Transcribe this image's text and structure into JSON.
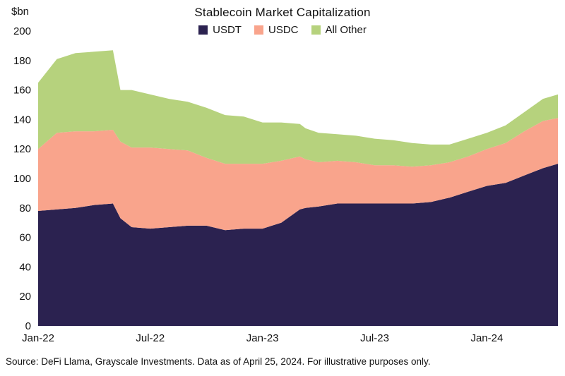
{
  "header": {
    "unit_label": "$bn"
  },
  "footer": {
    "source": "Source: DeFi Llama, Grayscale Investments. Data as of April 25, 2024. For illustrative purposes only."
  },
  "chart_data": {
    "type": "area",
    "stacked": true,
    "title": "Stablecoin Market Capitalization",
    "ylabel": "$bn",
    "xlabel": "",
    "ylim": [
      0,
      200
    ],
    "ytick_step": 20,
    "grid": false,
    "legend_position": "top",
    "x_unit": "months since Jan-2022",
    "x": [
      0,
      1,
      2,
      3,
      4,
      4.4,
      5,
      6,
      7,
      8,
      9,
      10,
      11,
      12,
      13,
      14,
      14.3,
      15,
      16,
      17,
      18,
      19,
      20,
      21,
      22,
      23,
      24,
      25,
      26,
      27,
      27.8
    ],
    "xticks": [
      {
        "t": 0,
        "label": "Jan-22"
      },
      {
        "t": 6,
        "label": "Jul-22"
      },
      {
        "t": 12,
        "label": "Jan-23"
      },
      {
        "t": 18,
        "label": "Jul-23"
      },
      {
        "t": 24,
        "label": "Jan-24"
      }
    ],
    "series": [
      {
        "name": "USDT",
        "color": "#2b2250",
        "values": [
          78,
          79,
          80,
          82,
          83,
          73,
          67,
          66,
          67,
          68,
          68,
          65,
          66,
          66,
          70,
          79,
          80,
          81,
          83,
          83,
          83,
          83,
          83,
          84,
          87,
          91,
          95,
          97,
          102,
          107,
          110
        ]
      },
      {
        "name": "USDC",
        "color": "#f9a48c",
        "values": [
          42,
          52,
          52,
          50,
          50,
          52,
          54,
          55,
          53,
          51,
          46,
          45,
          44,
          44,
          42,
          36,
          33,
          30,
          29,
          28,
          26,
          26,
          25,
          25,
          24,
          24,
          25,
          27,
          30,
          32,
          31
        ]
      },
      {
        "name": "All Other",
        "color": "#b6d27d",
        "values": [
          45,
          50,
          53,
          54,
          54,
          35,
          39,
          36,
          34,
          33,
          34,
          33,
          32,
          28,
          26,
          22,
          21,
          20,
          18,
          18,
          18,
          17,
          16,
          14,
          12,
          12,
          11,
          12,
          13,
          15,
          16
        ]
      }
    ]
  }
}
